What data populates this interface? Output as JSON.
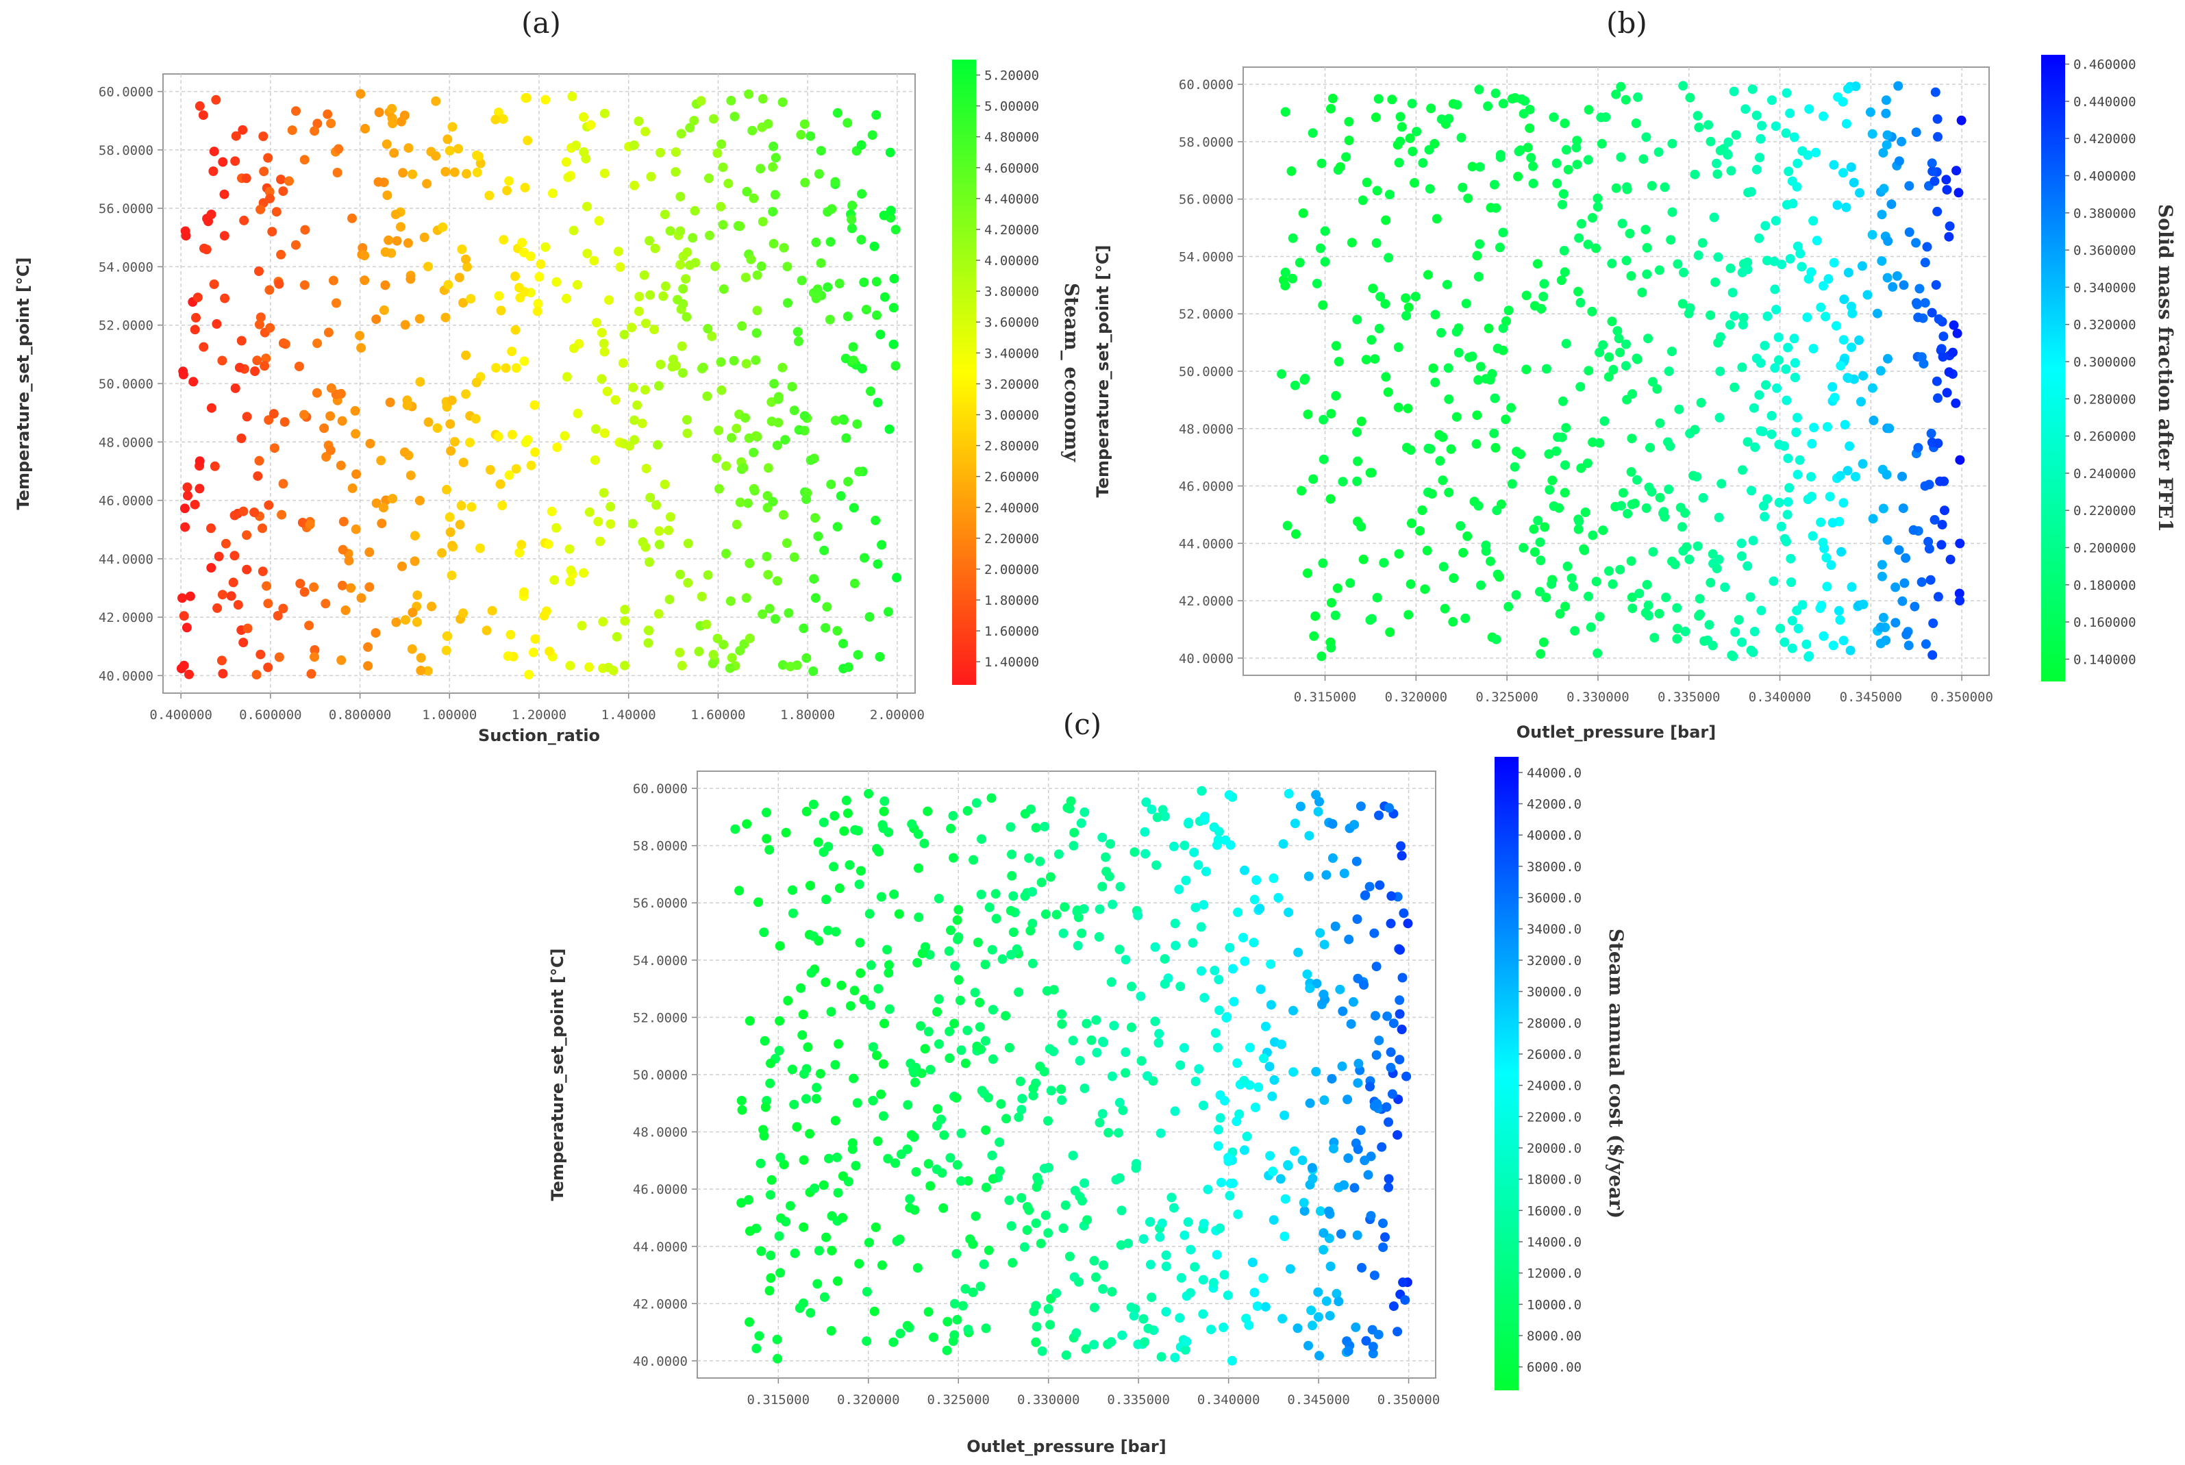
{
  "figure": {
    "panels": [
      {
        "id": "a",
        "label": "(a)"
      },
      {
        "id": "b",
        "label": "(b)"
      },
      {
        "id": "c",
        "label": "(c)"
      }
    ]
  },
  "chart_data": [
    {
      "id": "a",
      "type": "scatter",
      "title": "(a)",
      "xlabel": "Suction_ratio",
      "ylabel": "Temperature_set_point [°C]",
      "xlim": [
        0.36,
        2.04
      ],
      "ylim": [
        39.4,
        60.6
      ],
      "xticks": [
        0.4,
        0.6,
        0.8,
        1.0,
        1.2,
        1.4,
        1.6,
        1.8,
        2.0
      ],
      "xtick_labels": [
        "0.400000",
        "0.600000",
        "0.800000",
        "1.00000",
        "1.20000",
        "1.40000",
        "1.60000",
        "1.80000",
        "2.00000"
      ],
      "yticks": [
        40,
        42,
        44,
        46,
        48,
        50,
        52,
        54,
        56,
        58,
        60
      ],
      "ytick_labels": [
        "40.0000",
        "42.0000",
        "44.0000",
        "46.0000",
        "48.0000",
        "50.0000",
        "52.0000",
        "54.0000",
        "56.0000",
        "58.0000",
        "60.0000"
      ],
      "grid": true,
      "color_by": "Steam_ economy",
      "colorbar": {
        "label": "Steam_ economy",
        "min": 1.25,
        "max": 5.3,
        "colormap": "red-yellow-green",
        "colors": [
          "#ff1a1a",
          "#ffff00",
          "#00ff33"
        ],
        "ticks": [
          1.4,
          1.6,
          1.8,
          2.0,
          2.2,
          2.4,
          2.6,
          2.8,
          3.0,
          3.2,
          3.4,
          3.6,
          3.8,
          4.0,
          4.2,
          4.4,
          4.6,
          4.8,
          5.0,
          5.2
        ],
        "tick_labels": [
          "1.40000",
          "1.60000",
          "1.80000",
          "2.00000",
          "2.20000",
          "2.40000",
          "2.60000",
          "2.80000",
          "3.00000",
          "3.20000",
          "3.40000",
          "3.60000",
          "3.80000",
          "4.00000",
          "4.20000",
          "4.40000",
          "4.60000",
          "4.80000",
          "5.00000",
          "5.20000"
        ]
      },
      "n_points": 760,
      "point_trend": "color value rises with Suction_ratio: ~1.3 at x=0.4 (red) to ~5.2 at x=2.0 (green); points uniformly spread over x 0.4–2.0 and y 40–60",
      "points_sample": [
        {
          "x": 0.41,
          "y": 50.5,
          "c": 1.45
        },
        {
          "x": 0.45,
          "y": 58.0,
          "c": 1.7
        },
        {
          "x": 0.6,
          "y": 44.0,
          "c": 2.0
        },
        {
          "x": 0.8,
          "y": 54.0,
          "c": 2.6
        },
        {
          "x": 1.0,
          "y": 60.0,
          "c": 3.4
        },
        {
          "x": 1.2,
          "y": 52.0,
          "c": 3.7
        },
        {
          "x": 1.4,
          "y": 46.0,
          "c": 4.1
        },
        {
          "x": 1.6,
          "y": 41.0,
          "c": 4.5
        },
        {
          "x": 1.8,
          "y": 56.0,
          "c": 4.9
        },
        {
          "x": 2.0,
          "y": 50.0,
          "c": 5.2
        }
      ]
    },
    {
      "id": "b",
      "type": "scatter",
      "title": "(b)",
      "xlabel": "Outlet_pressure [bar]",
      "ylabel": "Temperature_set_point [°C]",
      "xlim": [
        0.3105,
        0.3515
      ],
      "ylim": [
        39.4,
        60.6
      ],
      "xticks": [
        0.315,
        0.32,
        0.325,
        0.33,
        0.335,
        0.34,
        0.345,
        0.35
      ],
      "xtick_labels": [
        "0.315000",
        "0.320000",
        "0.325000",
        "0.330000",
        "0.335000",
        "0.340000",
        "0.345000",
        "0.350000"
      ],
      "yticks": [
        40,
        42,
        44,
        46,
        48,
        50,
        52,
        54,
        56,
        58,
        60
      ],
      "ytick_labels": [
        "40.0000",
        "42.0000",
        "44.0000",
        "46.0000",
        "48.0000",
        "50.0000",
        "52.0000",
        "54.0000",
        "56.0000",
        "58.0000",
        "60.0000"
      ],
      "grid": true,
      "color_by": "Solid mass fraction after FFE1",
      "colorbar": {
        "label": "Solid mass fraction after FFE1",
        "min": 0.128,
        "max": 0.465,
        "colormap": "green-cyan-blue",
        "colors": [
          "#00ff33",
          "#00ffff",
          "#0000ff"
        ],
        "ticks": [
          0.14,
          0.16,
          0.18,
          0.2,
          0.22,
          0.24,
          0.26,
          0.28,
          0.3,
          0.32,
          0.34,
          0.36,
          0.38,
          0.4,
          0.42,
          0.44,
          0.46
        ],
        "tick_labels": [
          "0.140000",
          "0.160000",
          "0.180000",
          "0.200000",
          "0.220000",
          "0.240000",
          "0.260000",
          "0.280000",
          "0.300000",
          "0.320000",
          "0.340000",
          "0.360000",
          "0.380000",
          "0.400000",
          "0.420000",
          "0.440000",
          "0.460000"
        ]
      },
      "n_points": 800,
      "point_trend": "color value rises steeply with Outlet_pressure: ~0.14 (green) below 0.33 bar to ~0.45 (blue) at 0.35 bar",
      "points_sample": [
        {
          "x": 0.315,
          "y": 59.8,
          "c": 0.14
        },
        {
          "x": 0.32,
          "y": 50.5,
          "c": 0.15
        },
        {
          "x": 0.325,
          "y": 44.0,
          "c": 0.16
        },
        {
          "x": 0.33,
          "y": 48.0,
          "c": 0.18
        },
        {
          "x": 0.335,
          "y": 56.0,
          "c": 0.22
        },
        {
          "x": 0.34,
          "y": 54.0,
          "c": 0.27
        },
        {
          "x": 0.345,
          "y": 46.0,
          "c": 0.33
        },
        {
          "x": 0.3485,
          "y": 58.0,
          "c": 0.41
        },
        {
          "x": 0.3495,
          "y": 52.0,
          "c": 0.44
        }
      ]
    },
    {
      "id": "c",
      "type": "scatter",
      "title": "(c)",
      "xlabel": "Outlet_pressure [bar]",
      "ylabel": "Temperature_set_point [°C]",
      "xlim": [
        0.3105,
        0.3515
      ],
      "ylim": [
        39.4,
        60.6
      ],
      "xticks": [
        0.315,
        0.32,
        0.325,
        0.33,
        0.335,
        0.34,
        0.345,
        0.35
      ],
      "xtick_labels": [
        "0.315000",
        "0.320000",
        "0.325000",
        "0.330000",
        "0.335000",
        "0.340000",
        "0.345000",
        "0.350000"
      ],
      "yticks": [
        40,
        42,
        44,
        46,
        48,
        50,
        52,
        54,
        56,
        58,
        60
      ],
      "ytick_labels": [
        "40.0000",
        "42.0000",
        "44.0000",
        "46.0000",
        "48.0000",
        "50.0000",
        "52.0000",
        "54.0000",
        "56.0000",
        "58.0000",
        "60.0000"
      ],
      "grid": true,
      "color_by": "Steam annual cost ($/year)",
      "colorbar": {
        "label": "Steam annual cost ($/year)",
        "min": 4500,
        "max": 45000,
        "colormap": "green-cyan-blue",
        "colors": [
          "#00ff33",
          "#00ffff",
          "#0000ff"
        ],
        "ticks": [
          6000,
          8000,
          10000,
          12000,
          14000,
          16000,
          18000,
          20000,
          22000,
          24000,
          26000,
          28000,
          30000,
          32000,
          34000,
          36000,
          38000,
          40000,
          42000,
          44000
        ],
        "tick_labels": [
          "6000.00",
          "8000.00",
          "10000.0",
          "12000.0",
          "14000.0",
          "16000.0",
          "18000.0",
          "20000.0",
          "22000.0",
          "24000.0",
          "26000.0",
          "28000.0",
          "30000.0",
          "32000.0",
          "34000.0",
          "36000.0",
          "38000.0",
          "40000.0",
          "42000.0",
          "44000.0"
        ]
      },
      "n_points": 800,
      "point_trend": "color value rises with Outlet_pressure, from ~6000 (green) at 0.315 bar to ~40000 (blue) near 0.35 bar; same point cloud as (b)",
      "points_sample": [
        {
          "x": 0.315,
          "y": 59.8,
          "c": 6500
        },
        {
          "x": 0.32,
          "y": 50.5,
          "c": 8000
        },
        {
          "x": 0.325,
          "y": 44.0,
          "c": 10000
        },
        {
          "x": 0.33,
          "y": 48.0,
          "c": 13000
        },
        {
          "x": 0.335,
          "y": 56.0,
          "c": 17000
        },
        {
          "x": 0.34,
          "y": 54.0,
          "c": 22000
        },
        {
          "x": 0.345,
          "y": 46.0,
          "c": 30000
        },
        {
          "x": 0.3485,
          "y": 58.0,
          "c": 38000
        },
        {
          "x": 0.3495,
          "y": 52.0,
          "c": 41000
        }
      ]
    }
  ]
}
